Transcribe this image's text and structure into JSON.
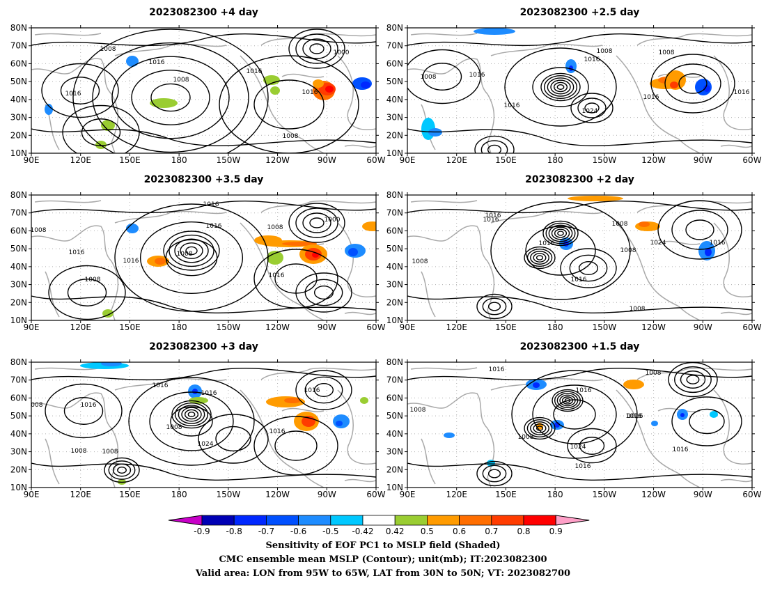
{
  "panels": [
    {
      "title": "2023082300  +4 day"
    },
    {
      "title": "2023082300  +2.5 day"
    },
    {
      "title": "2023082300  +3.5 day"
    },
    {
      "title": "2023082300  +2 day"
    },
    {
      "title": "2023082300  +3 day"
    },
    {
      "title": "2023082300  +1.5 day"
    }
  ],
  "axes": {
    "lat_ticks": [
      "10N",
      "20N",
      "30N",
      "40N",
      "50N",
      "60N",
      "70N",
      "80N"
    ],
    "lon_ticks": [
      "90E",
      "120E",
      "150E",
      "180",
      "150W",
      "120W",
      "90W",
      "60W"
    ]
  },
  "colorbar": {
    "labels": [
      "-0.9",
      "-0.8",
      "-0.7",
      "-0.6",
      "-0.5",
      "-0.42",
      "0.42",
      "0.5",
      "0.6",
      "0.7",
      "0.8",
      "0.9"
    ],
    "colors": [
      "#0000b4",
      "#0028ff",
      "#0050ff",
      "#1e8cff",
      "#00c8ff",
      "#ffffff",
      "#9acd32",
      "#ff9b00",
      "#ff6e00",
      "#ff3c00",
      "#ff0000"
    ],
    "under_color": "#c800c8",
    "over_color": "#ffa0c8"
  },
  "caption": {
    "line1": "Sensitivity of EOF PC1 to MSLP field (Shaded)",
    "line2": "CMC ensemble mean MSLP (Contour); unit(mb); IT:2023082300",
    "line3": "Valid area: LON from 95W to 65W, LAT from 30N to 50N; VT: 2023082700"
  },
  "contour_labels": {
    "p0": [
      "1008",
      "1016",
      "1008",
      "1016",
      "1016",
      "1000",
      "1016",
      "1008"
    ],
    "p1": [
      "1008",
      "1016",
      "1008",
      "1016",
      "1016",
      "1024",
      "1008",
      "1016",
      "1016"
    ],
    "p2": [
      "1016",
      "1016",
      "1008",
      "1016",
      "1008",
      "1000",
      "1008",
      "1016",
      "1008",
      "1016"
    ],
    "p3": [
      "1008",
      "1016",
      "1016",
      "1008",
      "1016",
      "1024",
      "1016",
      "1008",
      "1016",
      "1008"
    ],
    "p4": [
      "1008",
      "1016",
      "1016",
      "1016",
      "1008",
      "1024",
      "1008",
      "1016",
      "1016",
      "1008"
    ],
    "p5": [
      "1016",
      "1008",
      "1016",
      "1016",
      "1008",
      "1024",
      "1016",
      "1016",
      "1016",
      "1008"
    ]
  }
}
